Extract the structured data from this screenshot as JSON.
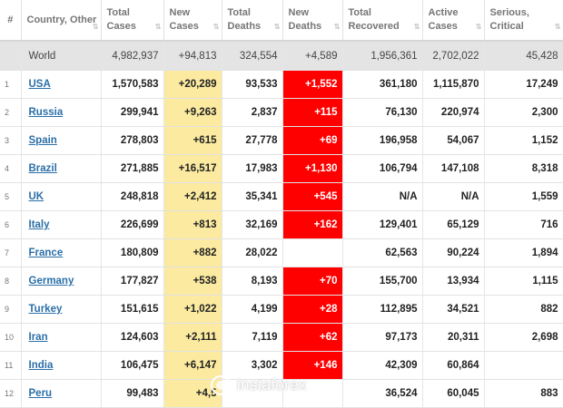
{
  "headers": [
    {
      "label": "#",
      "sort": ""
    },
    {
      "label": "Country, Other",
      "sort": "⇅"
    },
    {
      "label": "Total Cases",
      "sort": "⇅"
    },
    {
      "label": "New Cases",
      "sort": "⇅"
    },
    {
      "label": "Total Deaths",
      "sort": "⇅"
    },
    {
      "label": "New Deaths",
      "sort": "⇅"
    },
    {
      "label": "Total Recovered",
      "sort": "⇅"
    },
    {
      "label": "Active Cases",
      "sort": "⇅"
    },
    {
      "label": "Serious, Critical",
      "sort": "⇅"
    }
  ],
  "world": {
    "name": "World",
    "total_cases": "4,982,937",
    "new_cases": "+94,813",
    "total_deaths": "324,554",
    "new_deaths": "+4,589",
    "total_recovered": "1,956,361",
    "active_cases": "2,702,022",
    "serious": "45,428"
  },
  "rows": [
    {
      "idx": "1",
      "country": "USA",
      "total_cases": "1,570,583",
      "new_cases": "+20,289",
      "total_deaths": "93,533",
      "new_deaths": "+1,552",
      "total_recovered": "361,180",
      "active_cases": "1,115,870",
      "serious": "17,249"
    },
    {
      "idx": "2",
      "country": "Russia",
      "total_cases": "299,941",
      "new_cases": "+9,263",
      "total_deaths": "2,837",
      "new_deaths": "+115",
      "total_recovered": "76,130",
      "active_cases": "220,974",
      "serious": "2,300"
    },
    {
      "idx": "3",
      "country": "Spain",
      "total_cases": "278,803",
      "new_cases": "+615",
      "total_deaths": "27,778",
      "new_deaths": "+69",
      "total_recovered": "196,958",
      "active_cases": "54,067",
      "serious": "1,152"
    },
    {
      "idx": "4",
      "country": "Brazil",
      "total_cases": "271,885",
      "new_cases": "+16,517",
      "total_deaths": "17,983",
      "new_deaths": "+1,130",
      "total_recovered": "106,794",
      "active_cases": "147,108",
      "serious": "8,318"
    },
    {
      "idx": "5",
      "country": "UK",
      "total_cases": "248,818",
      "new_cases": "+2,412",
      "total_deaths": "35,341",
      "new_deaths": "+545",
      "total_recovered": "N/A",
      "active_cases": "N/A",
      "serious": "1,559"
    },
    {
      "idx": "6",
      "country": "Italy",
      "total_cases": "226,699",
      "new_cases": "+813",
      "total_deaths": "32,169",
      "new_deaths": "+162",
      "total_recovered": "129,401",
      "active_cases": "65,129",
      "serious": "716"
    },
    {
      "idx": "7",
      "country": "France",
      "total_cases": "180,809",
      "new_cases": "+882",
      "total_deaths": "28,022",
      "new_deaths": "",
      "total_recovered": "62,563",
      "active_cases": "90,224",
      "serious": "1,894"
    },
    {
      "idx": "8",
      "country": "Germany",
      "total_cases": "177,827",
      "new_cases": "+538",
      "total_deaths": "8,193",
      "new_deaths": "+70",
      "total_recovered": "155,700",
      "active_cases": "13,934",
      "serious": "1,115"
    },
    {
      "idx": "9",
      "country": "Turkey",
      "total_cases": "151,615",
      "new_cases": "+1,022",
      "total_deaths": "4,199",
      "new_deaths": "+28",
      "total_recovered": "112,895",
      "active_cases": "34,521",
      "serious": "882"
    },
    {
      "idx": "10",
      "country": "Iran",
      "total_cases": "124,603",
      "new_cases": "+2,111",
      "total_deaths": "7,119",
      "new_deaths": "+62",
      "total_recovered": "97,173",
      "active_cases": "20,311",
      "serious": "2,698"
    },
    {
      "idx": "11",
      "country": "India",
      "total_cases": "106,475",
      "new_cases": "+6,147",
      "total_deaths": "3,302",
      "new_deaths": "+146",
      "total_recovered": "42,309",
      "active_cases": "60,864",
      "serious": ""
    },
    {
      "idx": "12",
      "country": "Peru",
      "total_cases": "99,483",
      "new_cases": "+4,5",
      "total_deaths": "",
      "new_deaths": "",
      "total_recovered": "36,524",
      "active_cases": "60,045",
      "serious": "883"
    }
  ],
  "watermark": {
    "text": "instaforex",
    "icon": "instaforex-logo-icon"
  },
  "colors": {
    "new_cases_bg": "#fbeaa0",
    "new_deaths_bg": "#ff0000",
    "world_row_bg": "#e4e4e4",
    "link": "#2a6fa8"
  }
}
